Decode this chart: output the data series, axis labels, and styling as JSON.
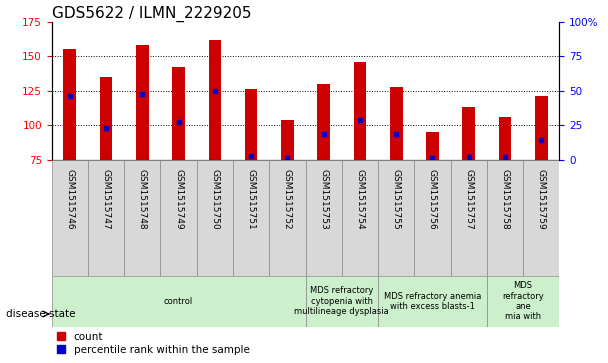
{
  "title": "GDS5622 / ILMN_2229205",
  "samples": [
    "GSM1515746",
    "GSM1515747",
    "GSM1515748",
    "GSM1515749",
    "GSM1515750",
    "GSM1515751",
    "GSM1515752",
    "GSM1515753",
    "GSM1515754",
    "GSM1515755",
    "GSM1515756",
    "GSM1515757",
    "GSM1515758",
    "GSM1515759"
  ],
  "counts": [
    155,
    135,
    158,
    142,
    162,
    126,
    104,
    130,
    146,
    128,
    95,
    113,
    106,
    121
  ],
  "percentile_ranks_pct": [
    46,
    23,
    48,
    27,
    50,
    3,
    1,
    19,
    29,
    19,
    1,
    2,
    2,
    14
  ],
  "bar_bottom": 75,
  "ylim": [
    75,
    175
  ],
  "yticks": [
    75,
    100,
    125,
    150,
    175
  ],
  "bar_color": "#cc0000",
  "percentile_color": "#0000cc",
  "disease_groups": [
    {
      "label": "control",
      "start": 0,
      "end": 7,
      "color": "#ccf0cc"
    },
    {
      "label": "MDS refractory\ncytopenia with\nmultilineage dysplasia",
      "start": 7,
      "end": 9,
      "color": "#ccf0cc"
    },
    {
      "label": "MDS refractory anemia\nwith excess blasts-1",
      "start": 9,
      "end": 12,
      "color": "#ccf0cc"
    },
    {
      "label": "MDS\nrefractory\nane\nmia with",
      "start": 12,
      "end": 14,
      "color": "#ccf0cc"
    }
  ],
  "bar_width": 0.35,
  "title_fontsize": 11,
  "tick_fontsize": 7.5,
  "label_fontsize": 8
}
